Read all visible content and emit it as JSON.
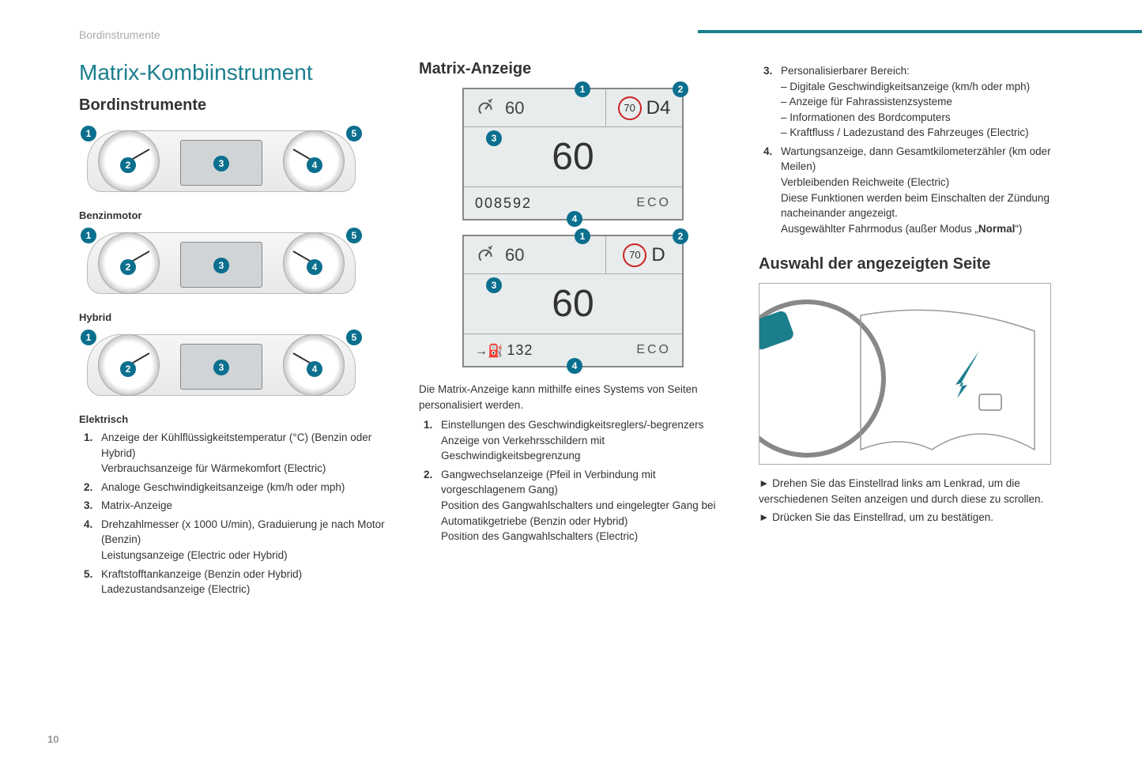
{
  "header": {
    "section": "Bordinstrumente",
    "page_number": "10"
  },
  "col1": {
    "title": "Matrix-Kombiinstrument",
    "subtitle": "Bordinstrumente",
    "variants": [
      "Benzinmotor",
      "Hybrid",
      "Elektrisch"
    ],
    "callouts": [
      "1",
      "2",
      "3",
      "4",
      "5"
    ],
    "list": [
      {
        "n": "1.",
        "t": "Anzeige der Kühlflüssigkeitstemperatur (°C) (Benzin oder Hybrid)\nVerbrauchsanzeige für Wärmekomfort (Electric)"
      },
      {
        "n": "2.",
        "t": "Analoge Geschwindigkeitsanzeige (km/h oder mph)"
      },
      {
        "n": "3.",
        "t": "Matrix-Anzeige"
      },
      {
        "n": "4.",
        "t": "Drehzahlmesser (x 1000 U/min), Graduierung je nach Motor (Benzin)\nLeistungsanzeige (Electric oder Hybrid)"
      },
      {
        "n": "5.",
        "t": "Kraftstofftankanzeige (Benzin oder Hybrid)\nLadezustandsanzeige (Electric)"
      }
    ]
  },
  "col2": {
    "title": "Matrix-Anzeige",
    "disp1": {
      "cruise": "60",
      "limit": "70",
      "gear": "D4",
      "speed": "60",
      "odo": "008592",
      "mode": "ECO",
      "badges": [
        "1",
        "2",
        "3",
        "4"
      ]
    },
    "disp2": {
      "cruise": "60",
      "limit": "70",
      "gear": "D",
      "speed": "60",
      "range": "132",
      "mode": "ECO",
      "badges": [
        "1",
        "2",
        "3",
        "4"
      ]
    },
    "intro": "Die Matrix-Anzeige kann mithilfe eines Systems von Seiten personalisiert werden.",
    "list": [
      {
        "n": "1.",
        "t": "Einstellungen des Geschwindigkeitsreglers/-begrenzers\nAnzeige von Verkehrsschildern mit Geschwindigkeitsbegrenzung"
      },
      {
        "n": "2.",
        "t": "Gangwechselanzeige (Pfeil in Verbindung mit vorgeschlagenem Gang)\nPosition des Gangwahlschalters und eingelegter Gang bei Automatikgetriebe (Benzin oder Hybrid)\nPosition des Gangwahlschalters (Electric)"
      }
    ]
  },
  "col3": {
    "list": [
      {
        "n": "3.",
        "t": "Personalisierbarer Bereich:",
        "dashes": [
          "Digitale Geschwindigkeitsanzeige (km/h oder mph)",
          "Anzeige für Fahrassistenzsysteme",
          "Informationen des Bordcomputers",
          "Kraftfluss / Ladezustand des Fahrzeuges (Electric)"
        ]
      },
      {
        "n": "4.",
        "t": "Wartungsanzeige, dann Gesamtkilometerzähler (km oder Meilen)\nVerbleibenden Reichweite (Electric)\nDiese Funktionen werden beim Einschalten der Zündung nacheinander angezeigt.\nAusgewählter Fahrmodus (außer Modus „Normal“)"
      }
    ],
    "subtitle": "Auswahl der angezeigten Seite",
    "instructions": [
      "Drehen Sie das Einstellrad links am Lenkrad, um die verschiedenen Seiten anzeigen und durch diese zu scrollen.",
      "Drücken Sie das Einstellrad, um zu bestätigen."
    ]
  },
  "colors": {
    "accent": "#1a7e8d",
    "callout_bg": "#0b6f8e",
    "speedlimit_ring": "#cc2222"
  }
}
